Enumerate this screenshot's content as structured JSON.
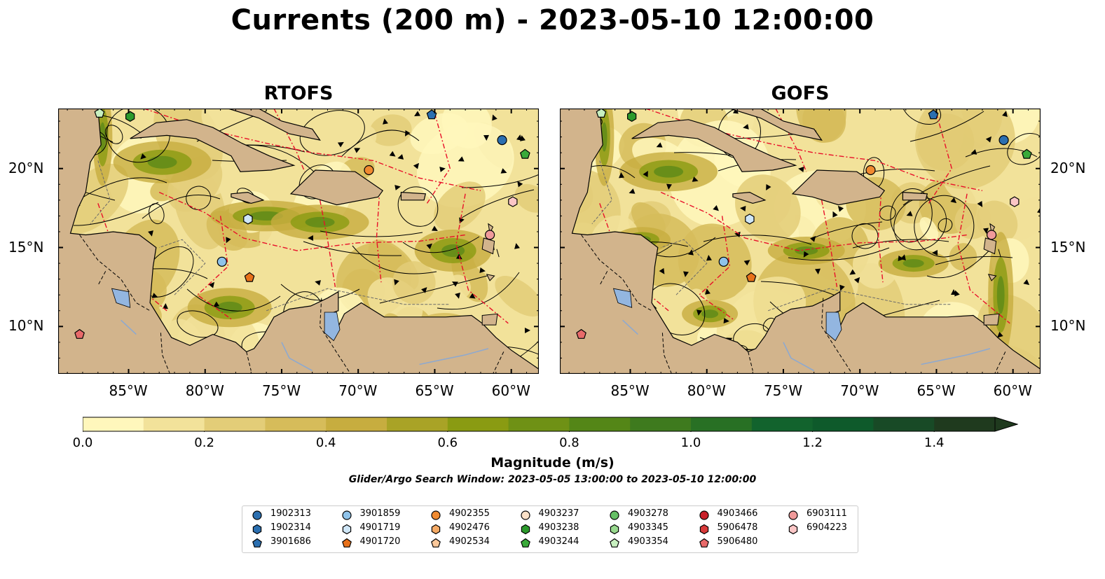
{
  "title": "Currents (200 m) - 2023-05-10 12:00:00",
  "panels": [
    {
      "title": "RTOFS"
    },
    {
      "title": "GOFS"
    }
  ],
  "axes": {
    "lon_ticks": [
      "85°W",
      "80°W",
      "75°W",
      "70°W",
      "65°W",
      "60°W"
    ],
    "lat_ticks": [
      "20°N",
      "15°N",
      "10°N"
    ],
    "lon_range": [
      -89.6,
      -58.2
    ],
    "lat_range": [
      7.0,
      23.8
    ]
  },
  "colorbar": {
    "label": "Magnitude (m/s)",
    "ticks": [
      "0.0",
      "0.2",
      "0.4",
      "0.6",
      "0.8",
      "1.0",
      "1.2",
      "1.4"
    ],
    "range": [
      0.0,
      1.5
    ],
    "extend": "max",
    "colors": [
      "#fff7bc",
      "#f2e29a",
      "#e3cd78",
      "#d6bc5a",
      "#c7ad3f",
      "#a9a326",
      "#8a9b12",
      "#6f9115",
      "#548617",
      "#3e7a1e",
      "#287024",
      "#12632d",
      "#0e5a2b",
      "#184a26",
      "#1f3a1e"
    ]
  },
  "search_window": "Glider/Argo Search Window: 2023-05-05 13:00:00 to 2023-05-10 12:00:00",
  "legend": [
    {
      "label": "1902313",
      "shape": "circle",
      "color": "#2b6fb0"
    },
    {
      "label": "1902314",
      "shape": "hexagon",
      "color": "#2b6fb0"
    },
    {
      "label": "3901686",
      "shape": "pentagon",
      "color": "#2b6fb0"
    },
    {
      "label": "3901859",
      "shape": "circle",
      "color": "#8fc3ea"
    },
    {
      "label": "4901719",
      "shape": "hexagon",
      "color": "#cfe6f7"
    },
    {
      "label": "4901720",
      "shape": "pentagon",
      "color": "#e8711a"
    },
    {
      "label": "4902355",
      "shape": "circle",
      "color": "#f08a30"
    },
    {
      "label": "4902476",
      "shape": "hexagon",
      "color": "#f5aa65"
    },
    {
      "label": "4902534",
      "shape": "pentagon",
      "color": "#fbc89a"
    },
    {
      "label": "4903237",
      "shape": "circle",
      "color": "#fbe1c8"
    },
    {
      "label": "4903238",
      "shape": "hexagon",
      "color": "#2c9a2c"
    },
    {
      "label": "4903244",
      "shape": "pentagon",
      "color": "#3aaa3a"
    },
    {
      "label": "4903278",
      "shape": "circle",
      "color": "#66c066"
    },
    {
      "label": "4903345",
      "shape": "hexagon",
      "color": "#98d98e"
    },
    {
      "label": "4903354",
      "shape": "pentagon",
      "color": "#c8f0c0"
    },
    {
      "label": "4903466",
      "shape": "circle",
      "color": "#c8202a"
    },
    {
      "label": "5906478",
      "shape": "hexagon",
      "color": "#d83a3a"
    },
    {
      "label": "5906480",
      "shape": "pentagon",
      "color": "#e86a6a"
    },
    {
      "label": "6903111",
      "shape": "circle",
      "color": "#f09a9a"
    },
    {
      "label": "6904223",
      "shape": "hexagon",
      "color": "#fbc6c6"
    }
  ],
  "floats": [
    {
      "id": "4903354",
      "lon": -86.9,
      "lat": 23.5
    },
    {
      "id": "4903238",
      "lon": -84.9,
      "lat": 23.3
    },
    {
      "id": "3901686",
      "lon": -65.2,
      "lat": 23.4
    },
    {
      "id": "1902313",
      "lon": -60.6,
      "lat": 21.8
    },
    {
      "id": "4903244",
      "lon": -59.1,
      "lat": 20.9
    },
    {
      "id": "4902355",
      "lon": -69.3,
      "lat": 19.9
    },
    {
      "id": "6904223",
      "lon": -59.9,
      "lat": 17.9
    },
    {
      "id": "4901719",
      "lon": -77.2,
      "lat": 16.8
    },
    {
      "id": "6903111",
      "lon": -61.4,
      "lat": 15.8
    },
    {
      "id": "3901859",
      "lon": -78.9,
      "lat": 14.1
    },
    {
      "id": "4901720",
      "lon": -77.1,
      "lat": 13.1
    },
    {
      "id": "5906480",
      "lon": -88.2,
      "lat": 9.5
    }
  ]
}
